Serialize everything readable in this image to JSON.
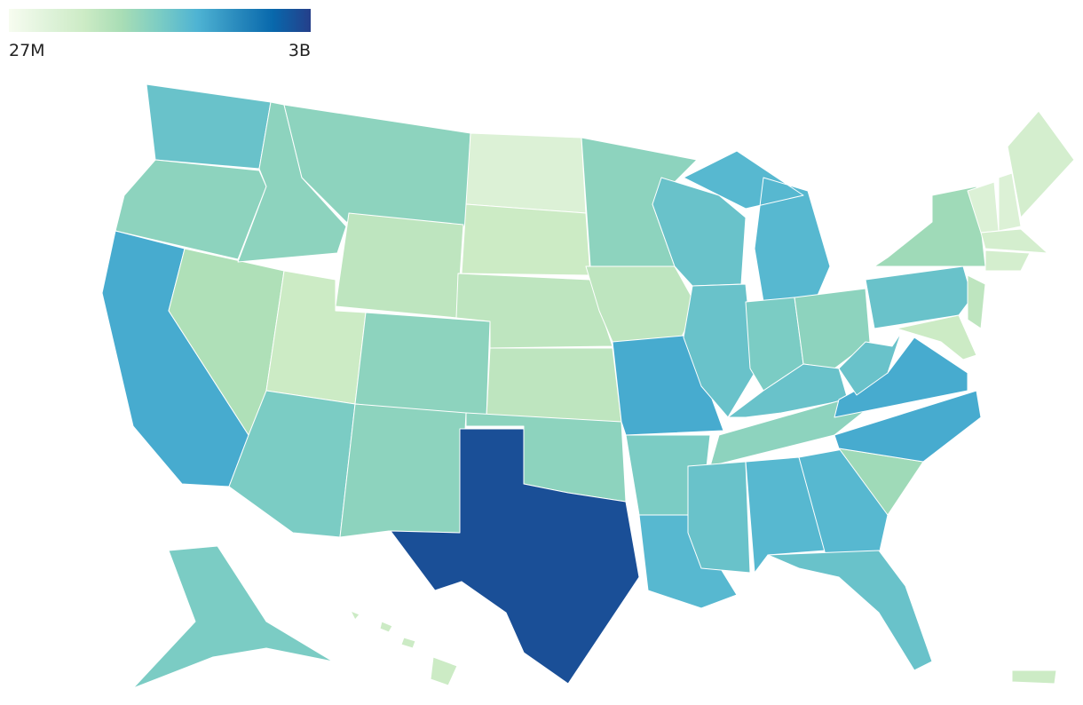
{
  "chart_data": {
    "type": "choropleth",
    "legend": {
      "min": {
        "value": 27000000,
        "label": "27M"
      },
      "max": {
        "value": 3000000000,
        "label": "3B"
      }
    },
    "log_scale": true,
    "colorscale": [
      "#f7fcf0",
      "#e0f3db",
      "#ccebc5",
      "#a8ddb5",
      "#7bccc4",
      "#4eb3d3",
      "#2b8cbe",
      "#0868ac",
      "#253f8a"
    ],
    "border_color": "#ffffff",
    "values": [
      360000000,
      225000000,
      576000000,
      140000000,
      225000000,
      225000000,
      111000000,
      88000000,
      284000000,
      225000000,
      225000000,
      55000000,
      88000000,
      111000000,
      111000000,
      225000000,
      2380000000,
      225000000,
      111000000,
      576000000,
      284000000,
      456000000,
      360000000,
      360000000,
      456000000,
      284000000,
      225000000,
      360000000,
      225000000,
      360000000,
      456000000,
      456000000,
      360000000,
      178000000,
      576000000,
      576000000,
      360000000,
      360000000,
      178000000,
      111000000,
      88000000,
      55000000,
      55000000,
      69000000,
      69000000,
      69000000,
      284000000,
      88000000,
      88000000
    ]
  }
}
